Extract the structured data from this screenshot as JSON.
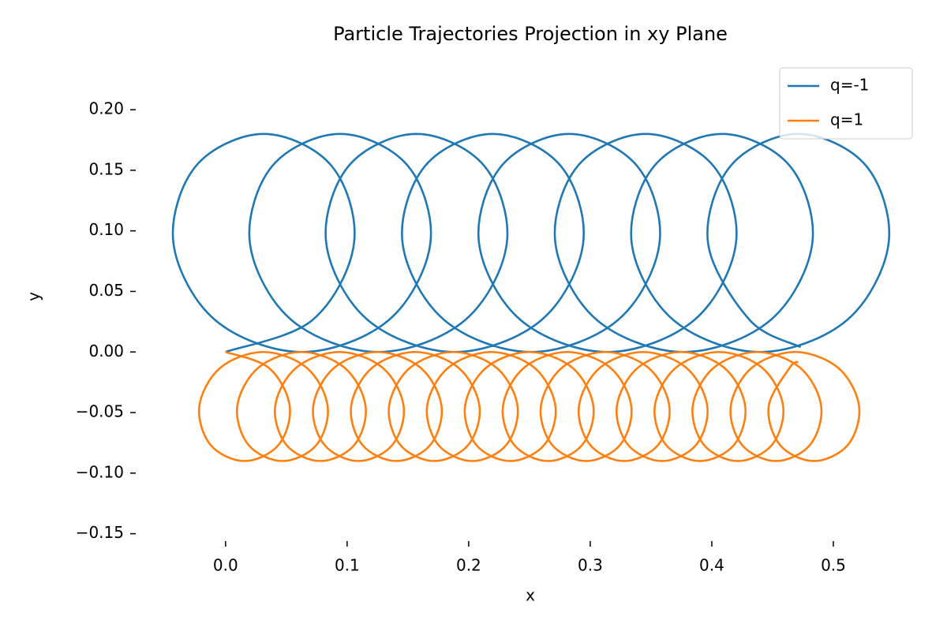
{
  "chart_data": {
    "type": "line",
    "title": "Particle Trajectories Projection in xy Plane",
    "x_label": "x",
    "y_label": "y",
    "legend": "upper right",
    "xlim": [
      -0.07,
      0.55
    ],
    "ylim": [
      -0.16,
      0.23
    ],
    "xticks": [
      {
        "value": 0,
        "label": "0.0"
      },
      0.1,
      0.2,
      0.3,
      0.4,
      0.5
    ],
    "yticks": [
      {
        "value": -0.15,
        "label": "−0.15"
      },
      {
        "value": -0.1,
        "label": "−0.10"
      },
      {
        "value": -0.05,
        "label": "−0.05"
      },
      {
        "value": 0,
        "label": "0.00"
      },
      0.05,
      {
        "value": 0.1,
        "label": "0.10"
      },
      0.15,
      {
        "value": 0.2,
        "label": "0.20"
      }
    ],
    "series": [
      {
        "name": "q=-1",
        "color": "#1f77b4",
        "x": [
          0,
          0.0715,
          0.1057,
          0.0872,
          0.0314,
          -0.0243,
          -0.0429,
          -0.0086,
          0.0628,
          0.1343,
          0.1685,
          0.15,
          0.0943,
          0.0385,
          0.02,
          0.0542,
          0.1257,
          0.1971,
          0.2314,
          0.2128,
          0.1571,
          0.1013,
          0.0828,
          0.117,
          0.1885,
          0.2599,
          0.2942,
          0.2757,
          0.2199,
          0.1642,
          0.1456,
          0.1799,
          0.2513,
          0.3228,
          0.357,
          0.3385,
          0.2827,
          0.227,
          0.2085,
          0.2427,
          0.3142,
          0.3856,
          0.4199,
          0.4013,
          0.3456,
          0.2898,
          0.2713,
          0.3055,
          0.377,
          0.4484,
          0.4827,
          0.4642,
          0.4084,
          0.3527,
          0.3341,
          0.3684,
          0.4398,
          0.5113,
          0.5455,
          0.527,
          0.4712,
          0.4155,
          0.3969,
          0.4312,
          0.4731
        ],
        "values": [
          0,
          0.0264,
          0.09,
          0.1536,
          0.18,
          0.1536,
          0.09,
          0.0264,
          0,
          0.0264,
          0.09,
          0.1536,
          0.18,
          0.1536,
          0.09,
          0.0264,
          0,
          0.0264,
          0.09,
          0.1536,
          0.18,
          0.1536,
          0.09,
          0.0264,
          0,
          0.0264,
          0.09,
          0.1536,
          0.18,
          0.1536,
          0.09,
          0.0264,
          0,
          0.0264,
          0.09,
          0.1536,
          0.18,
          0.1536,
          0.09,
          0.0264,
          0,
          0.0264,
          0.09,
          0.1536,
          0.18,
          0.1536,
          0.09,
          0.0264,
          0,
          0.0264,
          0.09,
          0.1536,
          0.18,
          0.1536,
          0.09,
          0.0264,
          0,
          0.0264,
          0.09,
          0.1536,
          0.18,
          0.1536,
          0.09,
          0.0264,
          0.004
        ]
      },
      {
        "name": "q=1",
        "color": "#ff7f0e",
        "x": [
          0,
          0.0357,
          0.0528,
          0.0435,
          0.0156,
          -0.0123,
          -0.0216,
          -0.0045,
          0.0312,
          0.0669,
          0.084,
          0.0747,
          0.0468,
          0.0189,
          0.0096,
          0.0267,
          0.0624,
          0.0981,
          0.1152,
          0.1059,
          0.078,
          0.0501,
          0.0408,
          0.0579,
          0.0937,
          0.1294,
          0.1465,
          0.1372,
          0.1093,
          0.0814,
          0.0721,
          0.0892,
          0.1249,
          0.1606,
          0.1777,
          0.1684,
          0.1405,
          0.1126,
          0.1033,
          0.1204,
          0.1561,
          0.1918,
          0.2089,
          0.1996,
          0.1717,
          0.1438,
          0.1345,
          0.1516,
          0.1874,
          0.2231,
          0.2402,
          0.2309,
          0.203,
          0.1751,
          0.1658,
          0.1829,
          0.2186,
          0.2543,
          0.2714,
          0.2621,
          0.2342,
          0.2063,
          0.197,
          0.2141,
          0.2498,
          0.2855,
          0.3026,
          0.2933,
          0.2654,
          0.2375,
          0.2282,
          0.2453,
          0.281,
          0.3167,
          0.3338,
          0.3245,
          0.2966,
          0.2687,
          0.2594,
          0.2765,
          0.3123,
          0.348,
          0.3651,
          0.3558,
          0.3279,
          0.3,
          0.2907,
          0.3078,
          0.3435,
          0.3792,
          0.3963,
          0.387,
          0.3591,
          0.3312,
          0.3219,
          0.339,
          0.3747,
          0.4104,
          0.4275,
          0.4182,
          0.3903,
          0.3624,
          0.3531,
          0.3702,
          0.4059,
          0.4416,
          0.4587,
          0.4494,
          0.4215,
          0.3936,
          0.3843,
          0.4014,
          0.4372,
          0.4729,
          0.49,
          0.4807,
          0.4528,
          0.4249,
          0.4156,
          0.4327,
          0.4684,
          0.5041,
          0.5212,
          0.5119,
          0.484,
          0.4561,
          0.4468,
          0.4639,
          0.471
        ],
        "values": [
          0,
          -0.0132,
          -0.045,
          -0.0768,
          -0.09,
          -0.0768,
          -0.045,
          -0.0132,
          0,
          -0.0132,
          -0.045,
          -0.0768,
          -0.09,
          -0.0768,
          -0.045,
          -0.0132,
          0,
          -0.0132,
          -0.045,
          -0.0768,
          -0.09,
          -0.0768,
          -0.045,
          -0.0132,
          0,
          -0.0132,
          -0.045,
          -0.0768,
          -0.09,
          -0.0768,
          -0.045,
          -0.0132,
          0,
          -0.0132,
          -0.045,
          -0.0768,
          -0.09,
          -0.0768,
          -0.045,
          -0.0132,
          0,
          -0.0132,
          -0.045,
          -0.0768,
          -0.09,
          -0.0768,
          -0.045,
          -0.0132,
          0,
          -0.0132,
          -0.045,
          -0.0768,
          -0.09,
          -0.0768,
          -0.045,
          -0.0132,
          0,
          -0.0132,
          -0.045,
          -0.0768,
          -0.09,
          -0.0768,
          -0.045,
          -0.0132,
          0,
          -0.0132,
          -0.045,
          -0.0768,
          -0.09,
          -0.0768,
          -0.045,
          -0.0132,
          0,
          -0.0132,
          -0.045,
          -0.0768,
          -0.09,
          -0.0768,
          -0.045,
          -0.0132,
          0,
          -0.0132,
          -0.045,
          -0.0768,
          -0.09,
          -0.0768,
          -0.045,
          -0.0132,
          0,
          -0.0132,
          -0.045,
          -0.0768,
          -0.09,
          -0.0768,
          -0.045,
          -0.0132,
          0,
          -0.0132,
          -0.045,
          -0.0768,
          -0.09,
          -0.0768,
          -0.045,
          -0.0132,
          0,
          -0.0132,
          -0.045,
          -0.0768,
          -0.09,
          -0.0768,
          -0.045,
          -0.0132,
          0,
          -0.0132,
          -0.045,
          -0.0768,
          -0.09,
          -0.0768,
          -0.045,
          -0.0132,
          0,
          -0.0132,
          -0.045,
          -0.0768,
          -0.09,
          -0.0768,
          -0.045,
          -0.0132,
          -0.008
        ]
      }
    ]
  }
}
